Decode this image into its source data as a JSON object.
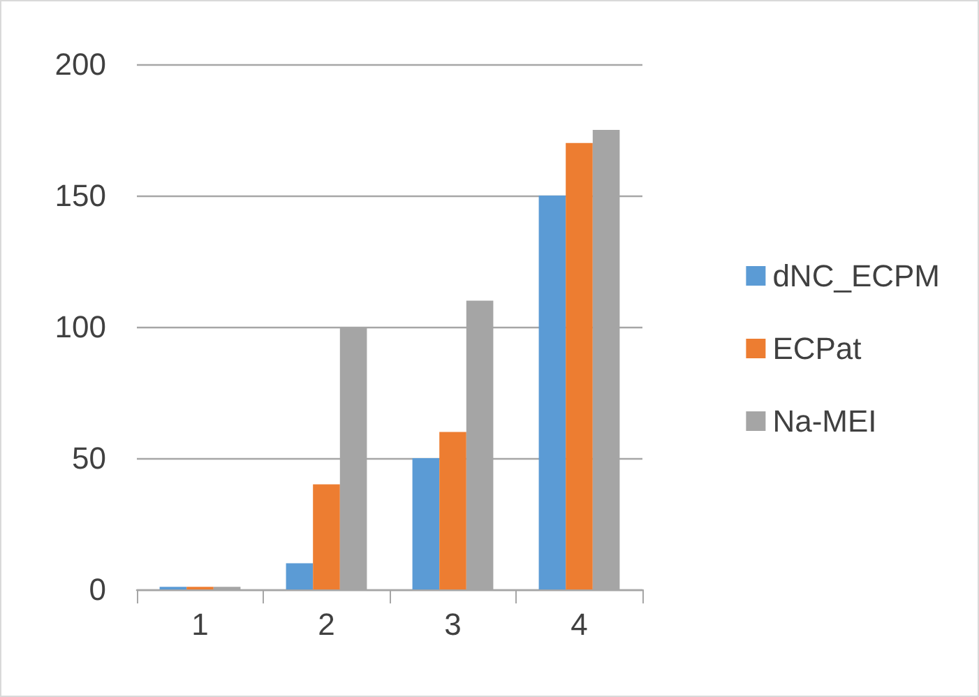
{
  "chart_data": {
    "type": "bar",
    "categories": [
      "1",
      "2",
      "3",
      "4"
    ],
    "series": [
      {
        "name": "dNC_ECPM",
        "color": "#5b9bd5",
        "values": [
          1,
          10,
          50,
          150
        ]
      },
      {
        "name": "ECPat",
        "color": "#ed7d31",
        "values": [
          1,
          40,
          60,
          170
        ]
      },
      {
        "name": "Na-MEI",
        "color": "#a5a5a5",
        "values": [
          1,
          100,
          110,
          175
        ]
      }
    ],
    "ylim": [
      0,
      200
    ],
    "yticks": [
      0,
      50,
      100,
      150,
      200
    ],
    "grid": "y",
    "legend": "right"
  }
}
